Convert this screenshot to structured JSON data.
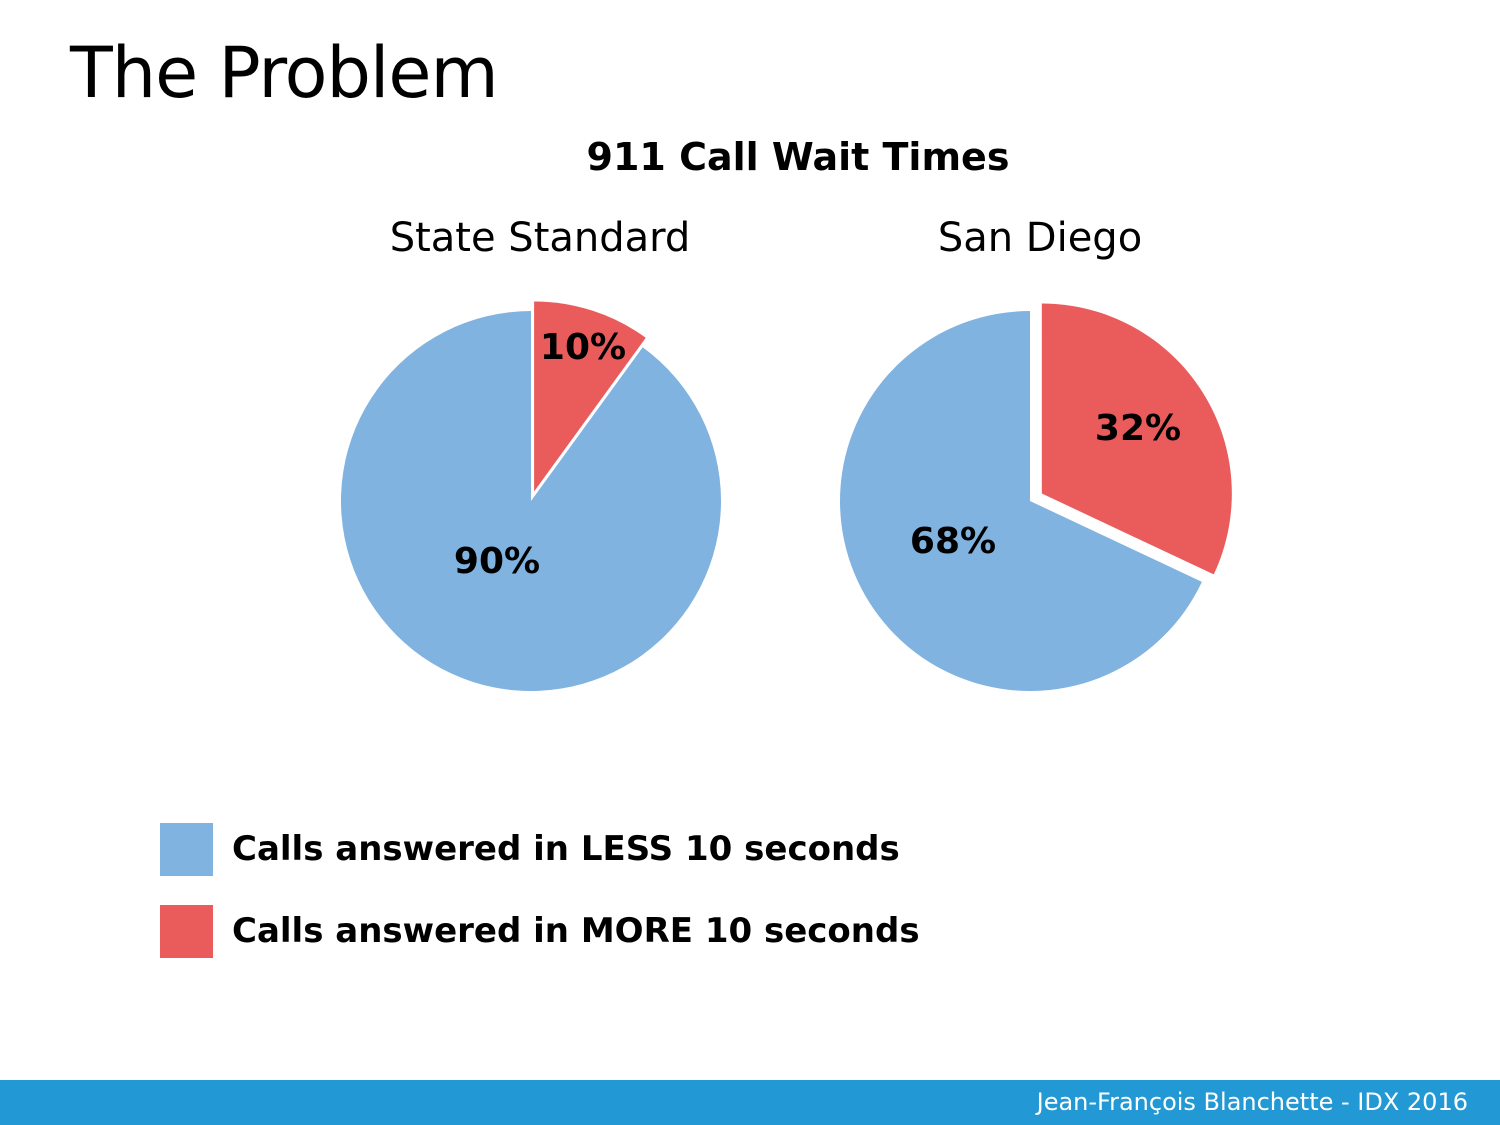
{
  "slide": {
    "title": "The Problem",
    "footer": "Jean-François Blanchette - IDX 2016"
  },
  "colors": {
    "less_10s": "#80b3e0",
    "more_10s": "#ea5c5c",
    "footer_bar": "#2298d4"
  },
  "chart_data": {
    "type": "pie",
    "title": "911 Call Wait Times",
    "legend_position": "bottom-left",
    "legend": [
      {
        "label": "Calls answered in LESS 10 seconds",
        "color": "#80b3e0"
      },
      {
        "label": "Calls answered in MORE 10 seconds",
        "color": "#ea5c5c"
      }
    ],
    "charts": [
      {
        "subtitle": "State Standard",
        "slices": [
          {
            "series": "Calls answered in LESS 10 seconds",
            "value": 90,
            "label": "90%"
          },
          {
            "series": "Calls answered in MORE 10 seconds",
            "value": 10,
            "label": "10%",
            "exploded": true
          }
        ]
      },
      {
        "subtitle": "San Diego",
        "slices": [
          {
            "series": "Calls answered in LESS 10 seconds",
            "value": 68,
            "label": "68%"
          },
          {
            "series": "Calls answered in MORE 10 seconds",
            "value": 32,
            "label": "32%",
            "exploded": true
          }
        ]
      }
    ]
  }
}
